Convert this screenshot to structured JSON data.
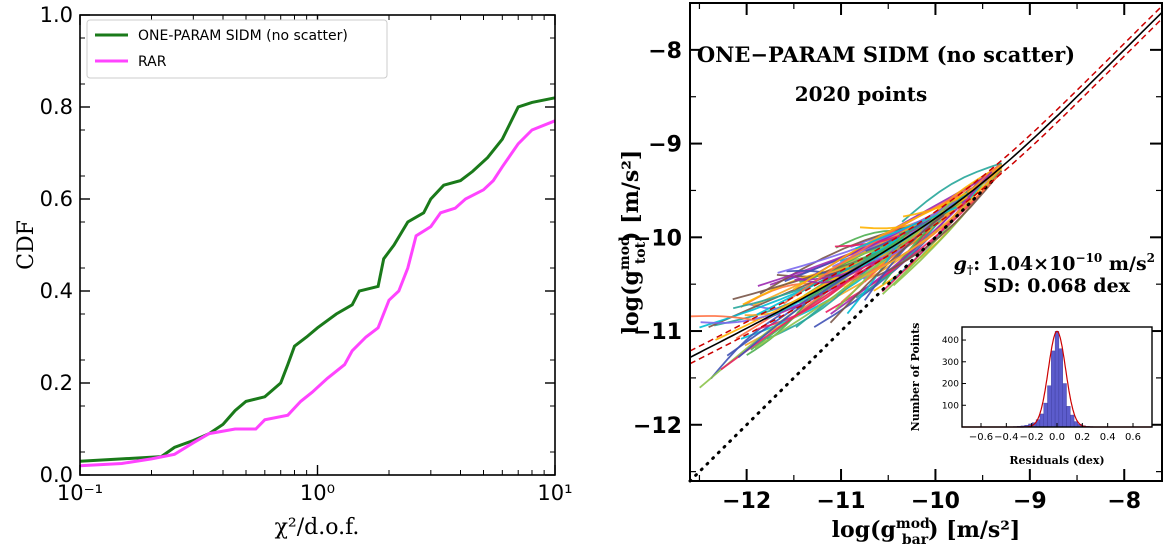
{
  "chart_data": [
    {
      "type": "line",
      "ylabel": "CDF",
      "xlabel": "χ²/d.o.f.",
      "xscale": "log",
      "xlim": [
        0.1,
        10
      ],
      "ylim": [
        0.0,
        1.0
      ],
      "x_tick_labels": [
        "10⁻¹",
        "10⁰",
        "10¹"
      ],
      "x_tick_values": [
        0.1,
        1,
        10
      ],
      "y_tick_labels": [
        "0.0",
        "0.2",
        "0.4",
        "0.6",
        "0.8",
        "1.0"
      ],
      "y_tick_values": [
        0,
        0.2,
        0.4,
        0.6,
        0.8,
        1.0
      ],
      "legend_position": "top-left",
      "series": [
        {
          "name": "ONE-PARAM SIDM (no scatter)",
          "color": "#1a7a1a",
          "points": [
            [
              0.1,
              0.03
            ],
            [
              0.15,
              0.035
            ],
            [
              0.22,
              0.04
            ],
            [
              0.25,
              0.06
            ],
            [
              0.3,
              0.075
            ],
            [
              0.35,
              0.09
            ],
            [
              0.4,
              0.11
            ],
            [
              0.45,
              0.14
            ],
            [
              0.5,
              0.16
            ],
            [
              0.6,
              0.17
            ],
            [
              0.7,
              0.2
            ],
            [
              0.75,
              0.24
            ],
            [
              0.8,
              0.28
            ],
            [
              0.9,
              0.3
            ],
            [
              1.0,
              0.32
            ],
            [
              1.2,
              0.35
            ],
            [
              1.4,
              0.37
            ],
            [
              1.5,
              0.4
            ],
            [
              1.8,
              0.41
            ],
            [
              1.9,
              0.47
            ],
            [
              2.1,
              0.5
            ],
            [
              2.4,
              0.55
            ],
            [
              2.8,
              0.57
            ],
            [
              3.0,
              0.6
            ],
            [
              3.4,
              0.63
            ],
            [
              4.0,
              0.64
            ],
            [
              4.5,
              0.66
            ],
            [
              5.2,
              0.69
            ],
            [
              6.0,
              0.73
            ],
            [
              7.0,
              0.8
            ],
            [
              8.0,
              0.81
            ],
            [
              10.0,
              0.82
            ]
          ]
        },
        {
          "name": "RAR",
          "color": "#ff44ff",
          "points": [
            [
              0.1,
              0.02
            ],
            [
              0.15,
              0.025
            ],
            [
              0.2,
              0.035
            ],
            [
              0.25,
              0.045
            ],
            [
              0.3,
              0.07
            ],
            [
              0.35,
              0.09
            ],
            [
              0.45,
              0.1
            ],
            [
              0.55,
              0.1
            ],
            [
              0.6,
              0.12
            ],
            [
              0.75,
              0.13
            ],
            [
              0.85,
              0.16
            ],
            [
              0.95,
              0.18
            ],
            [
              1.1,
              0.21
            ],
            [
              1.3,
              0.24
            ],
            [
              1.4,
              0.27
            ],
            [
              1.6,
              0.3
            ],
            [
              1.8,
              0.32
            ],
            [
              2.0,
              0.38
            ],
            [
              2.2,
              0.4
            ],
            [
              2.4,
              0.45
            ],
            [
              2.6,
              0.52
            ],
            [
              3.0,
              0.54
            ],
            [
              3.3,
              0.57
            ],
            [
              3.8,
              0.58
            ],
            [
              4.2,
              0.6
            ],
            [
              5.0,
              0.62
            ],
            [
              5.5,
              0.64
            ],
            [
              6.0,
              0.67
            ],
            [
              7.0,
              0.72
            ],
            [
              8.0,
              0.75
            ],
            [
              10.0,
              0.77
            ]
          ]
        }
      ]
    },
    {
      "type": "scatter",
      "xlabel_main": "log(g",
      "xlabel_sup": "mod",
      "xlabel_sub": "bar",
      "xlabel_tail": ") [m/s²]",
      "ylabel_main": "log(g",
      "ylabel_sup": "mod",
      "ylabel_sub": "tot",
      "ylabel_tail": ") [m/s²]",
      "xlim": [
        -12.6,
        -7.6
      ],
      "ylim": [
        -12.6,
        -7.5
      ],
      "x_tick_labels": [
        "−12",
        "−11",
        "−10",
        "−9",
        "−8"
      ],
      "x_tick_values": [
        -12,
        -11,
        -10,
        -9,
        -8
      ],
      "y_tick_labels": [
        "−12",
        "−11",
        "−10",
        "−9",
        "−8"
      ],
      "y_tick_values": [
        -12,
        -11,
        -10,
        -9,
        -8
      ],
      "title": "ONE−PARAM SIDM (no scatter)",
      "title_color": "#2e7d32",
      "points_label": "2020 points",
      "g_dagger_symbol": "g",
      "g_dagger_sub": "†",
      "g_dagger_value": ": 1.04×10",
      "g_dagger_exp": "−10",
      "g_dagger_unit": " m/s",
      "g_dagger_unit_exp": "2",
      "sd_label": "SD: 0.068 dex",
      "g_dagger": 1.04e-10,
      "fit_color": "#000000",
      "band_color": "#cc0000",
      "one_to_one_color": "#000000",
      "curve_colors": [
        "#f5a623",
        "#4caf50",
        "#7b68ee",
        "#ff7043",
        "#26a69a",
        "#9c27b0",
        "#e91e63",
        "#8bc34a",
        "#3f51b5",
        "#ffb300",
        "#00bcd4",
        "#795548"
      ],
      "inset": {
        "type": "bar",
        "xlabel": "Residuals (dex)",
        "ylabel": "Number of Points",
        "xlim": [
          -0.75,
          0.75
        ],
        "ylim": [
          0,
          460
        ],
        "x_tick_labels": [
          "−0.6",
          "−0.4",
          "−0.2",
          "0.0",
          "0.2",
          "0.4",
          "0.6"
        ],
        "x_tick_values": [
          -0.6,
          -0.4,
          -0.2,
          0.0,
          0.2,
          0.4,
          0.6
        ],
        "y_tick_labels": [
          "100",
          "200",
          "300",
          "400"
        ],
        "y_tick_values": [
          100,
          200,
          300,
          400
        ],
        "bar_color": "#5c5ccc",
        "gauss_color": "#cc0000",
        "bins": [
          -0.33,
          -0.3,
          -0.27,
          -0.24,
          -0.21,
          -0.18,
          -0.15,
          -0.12,
          -0.09,
          -0.06,
          -0.03,
          0.0,
          0.03,
          0.06,
          0.09,
          0.12,
          0.15,
          0.18,
          0.21,
          0.24,
          0.27,
          0.3
        ],
        "counts": [
          2,
          3,
          5,
          8,
          14,
          20,
          34,
          60,
          110,
          190,
          350,
          440,
          360,
          200,
          95,
          55,
          25,
          12,
          6,
          3,
          2,
          1
        ]
      }
    }
  ]
}
